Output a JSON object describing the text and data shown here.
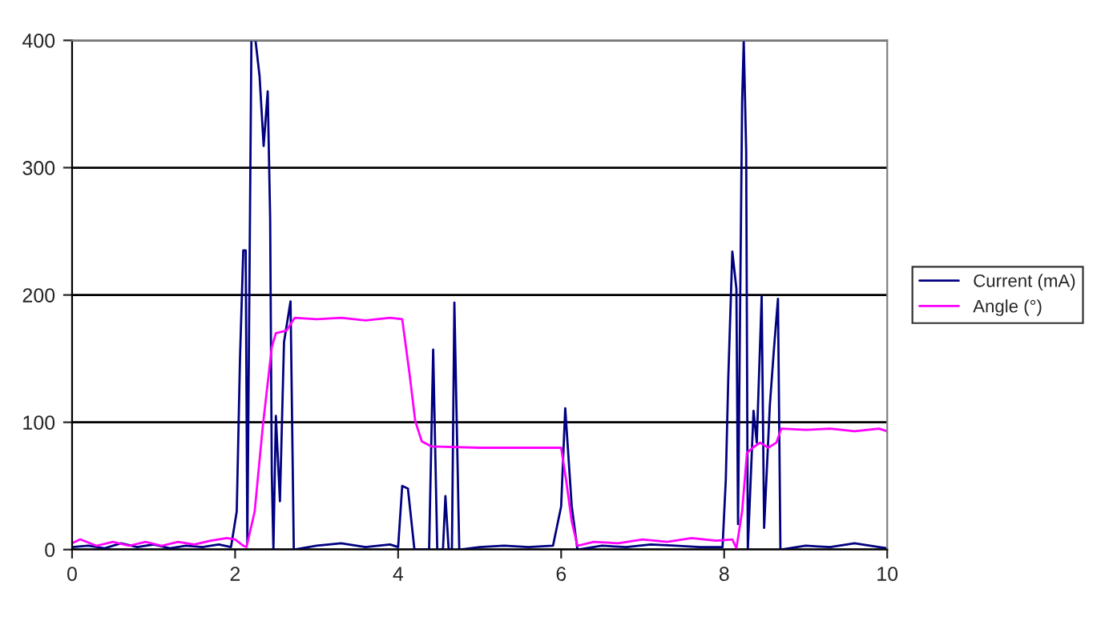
{
  "chart_data": {
    "type": "line",
    "xlim": [
      0,
      10
    ],
    "xticks": [
      0,
      2,
      4,
      6,
      8,
      10
    ],
    "ylim": [
      0,
      400
    ],
    "yticks": [
      0,
      100,
      200,
      300,
      400
    ],
    "grid": "y",
    "legend": "right",
    "series": [
      {
        "name": "Current (mA)",
        "color": "#000080",
        "x": [
          0,
          0.2,
          0.4,
          0.6,
          0.8,
          1.0,
          1.2,
          1.4,
          1.6,
          1.8,
          1.95,
          2.02,
          2.06,
          2.1,
          2.13,
          2.15,
          2.2,
          2.25,
          2.3,
          2.35,
          2.4,
          2.43,
          2.45,
          2.47,
          2.5,
          2.55,
          2.6,
          2.68,
          2.72,
          3.0,
          3.3,
          3.6,
          3.9,
          4.0,
          4.05,
          4.12,
          4.2,
          4.38,
          4.43,
          4.48,
          4.55,
          4.58,
          4.62,
          4.66,
          4.69,
          4.75,
          5.0,
          5.3,
          5.6,
          5.9,
          6.0,
          6.05,
          6.13,
          6.2,
          6.5,
          6.8,
          7.1,
          7.4,
          7.7,
          7.98,
          8.02,
          8.05,
          8.1,
          8.15,
          8.17,
          8.22,
          8.24,
          8.27,
          8.29,
          8.36,
          8.4,
          8.46,
          8.49,
          8.56,
          8.61,
          8.66,
          8.69,
          9.0,
          9.3,
          9.6,
          9.9,
          10
        ],
        "values": [
          2,
          3,
          1,
          5,
          2,
          4,
          1,
          3,
          2,
          4,
          2,
          30,
          150,
          235,
          235,
          5,
          400,
          400,
          372,
          317,
          360,
          260,
          60,
          0,
          105,
          38,
          163,
          195,
          0,
          3,
          5,
          2,
          4,
          2,
          50,
          48,
          0,
          0,
          157,
          0,
          0,
          42,
          0,
          0,
          194,
          0,
          2,
          3,
          2,
          3,
          34,
          111,
          34,
          0,
          3,
          2,
          4,
          3,
          2,
          2,
          55,
          134,
          234,
          205,
          20,
          351,
          400,
          313,
          0,
          109,
          84,
          199,
          17,
          113,
          157,
          197,
          0,
          3,
          2,
          5,
          2,
          1
        ]
      },
      {
        "name": "Angle (°)",
        "color": "#ff00ff",
        "x": [
          0,
          0.1,
          0.3,
          0.5,
          0.7,
          0.9,
          1.1,
          1.3,
          1.5,
          1.7,
          1.9,
          2.0,
          2.1,
          2.14,
          2.24,
          2.34,
          2.45,
          2.5,
          2.63,
          2.73,
          3.0,
          3.3,
          3.6,
          3.9,
          4.05,
          4.14,
          4.21,
          4.29,
          4.41,
          5.0,
          5.5,
          6.0,
          6.06,
          6.13,
          6.2,
          6.4,
          6.7,
          7.0,
          7.3,
          7.6,
          7.9,
          8.1,
          8.15,
          8.22,
          8.28,
          8.35,
          8.44,
          8.54,
          8.64,
          8.7,
          9.0,
          9.3,
          9.6,
          9.9,
          10
        ],
        "values": [
          5,
          8,
          3,
          6,
          3,
          6,
          3,
          6,
          4,
          7,
          9,
          8,
          3,
          2,
          30,
          97,
          159,
          170,
          172,
          182,
          181,
          182,
          180,
          182,
          181,
          138,
          101,
          85,
          81,
          80,
          80,
          80,
          55,
          22,
          3,
          6,
          5,
          8,
          6,
          9,
          7,
          8,
          1,
          30,
          76,
          80,
          84,
          80,
          84,
          95,
          94,
          95,
          93,
          95,
          93
        ]
      }
    ]
  }
}
